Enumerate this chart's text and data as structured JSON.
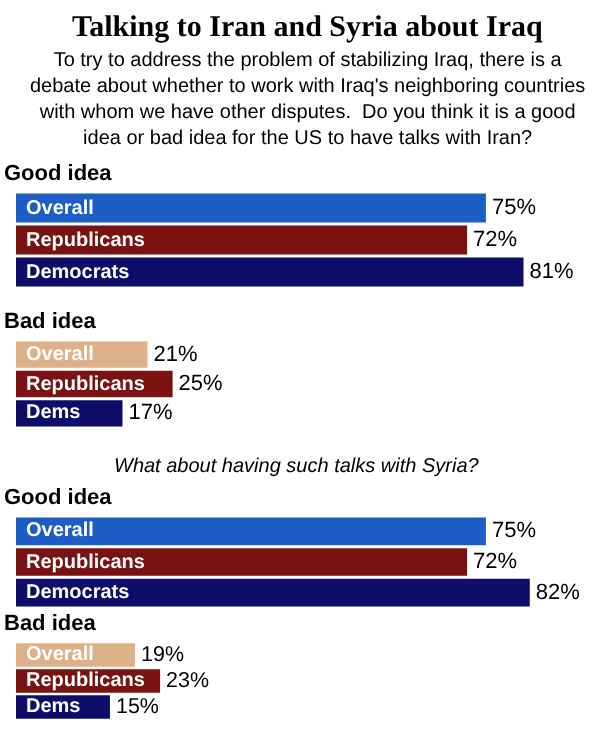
{
  "chart_data": [
    {
      "type": "bar",
      "orientation": "horizontal",
      "title": "Good idea",
      "annotations": [
        "Talking to Iran and Syria about Iraq",
        "To try to address the problem of stabilizing Iraq, there is a debate about whether to work with Iraq's neighboring countries with whom we have other disputes.  Do you think it is a good idea or bad idea for the US to have talks with Iran?"
      ],
      "categories": [
        "Overall",
        "Republicans",
        "Democrats"
      ],
      "values": [
        75,
        72,
        81
      ],
      "value_labels": [
        "75%",
        "72%",
        "81%"
      ],
      "colors": [
        "#1c5ec6",
        "#7a1212",
        "#0e0e6a"
      ]
    },
    {
      "type": "bar",
      "orientation": "horizontal",
      "title": "Bad idea",
      "categories": [
        "Overall",
        "Republicans",
        "Dems"
      ],
      "values": [
        21,
        25,
        17
      ],
      "value_labels": [
        "21%",
        "25%",
        "17%"
      ],
      "colors": [
        "#deb088",
        "#7a1212",
        "#0e0e6a"
      ]
    },
    {
      "type": "bar",
      "orientation": "horizontal",
      "title": "Good idea",
      "annotations": [
        "What about having such talks with Syria?"
      ],
      "categories": [
        "Overall",
        "Republicans",
        "Democrats"
      ],
      "values": [
        75,
        72,
        82
      ],
      "value_labels": [
        "75%",
        "72%",
        "82%"
      ],
      "colors": [
        "#1c5ec6",
        "#7a1212",
        "#0e0e6a"
      ]
    },
    {
      "type": "bar",
      "orientation": "horizontal",
      "title": "Bad idea",
      "categories": [
        "Overall",
        "Republicans",
        "Dems"
      ],
      "values": [
        19,
        23,
        15
      ],
      "value_labels": [
        "19%",
        "23%",
        "15%"
      ],
      "colors": [
        "#deb088",
        "#7a1212",
        "#0e0e6a"
      ]
    }
  ]
}
